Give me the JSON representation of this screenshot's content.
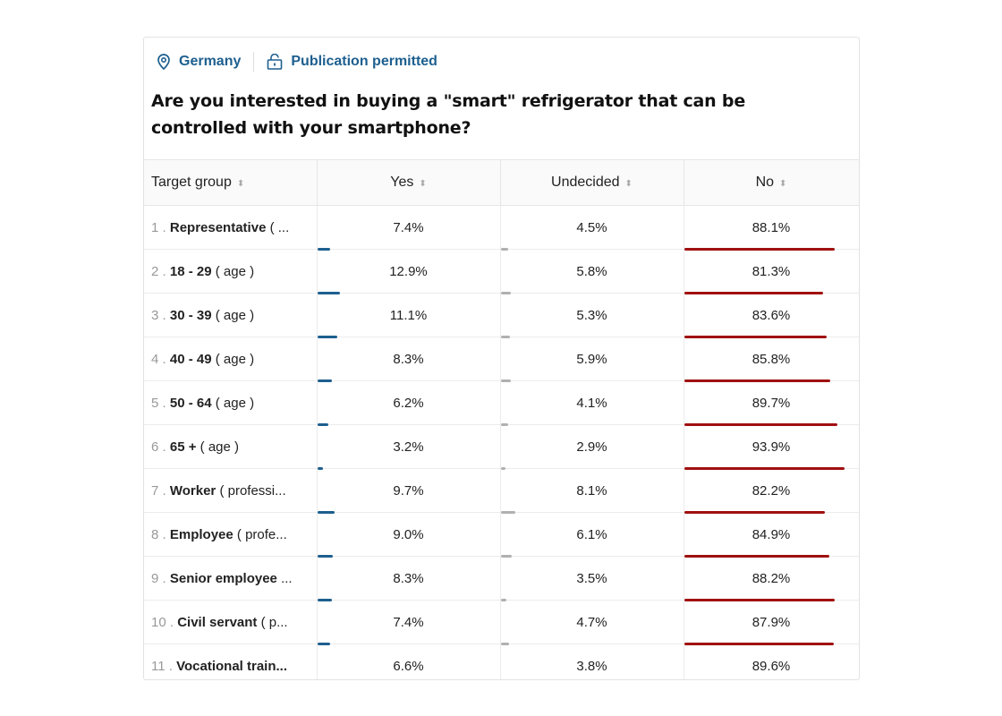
{
  "header": {
    "country": "Germany",
    "publication": "Publication permitted",
    "question": "Are you interested in buying a \"smart\" refrigerator that can be controlled with your smartphone?"
  },
  "columns": [
    "Target group",
    "Yes",
    "Undecided",
    "No"
  ],
  "colors": {
    "yes": "#1d5f8f",
    "undecided": "#b0b0b0",
    "no": "#a01010",
    "link": "#1d5f8f"
  },
  "rows": [
    {
      "num": "1",
      "name": "Representative",
      "suffix": " ( ...",
      "yes": "7.4%",
      "undecided": "4.5%",
      "no": "88.1%"
    },
    {
      "num": "2",
      "name": "18 - 29",
      "suffix": " ( age )",
      "yes": "12.9%",
      "undecided": "5.8%",
      "no": "81.3%"
    },
    {
      "num": "3",
      "name": "30 - 39",
      "suffix": " ( age )",
      "yes": "11.1%",
      "undecided": "5.3%",
      "no": "83.6%"
    },
    {
      "num": "4",
      "name": "40 - 49",
      "suffix": " ( age )",
      "yes": "8.3%",
      "undecided": "5.9%",
      "no": "85.8%"
    },
    {
      "num": "5",
      "name": "50 - 64",
      "suffix": " ( age )",
      "yes": "6.2%",
      "undecided": "4.1%",
      "no": "89.7%"
    },
    {
      "num": "6",
      "name": "65 +",
      "suffix": " ( age )",
      "yes": "3.2%",
      "undecided": "2.9%",
      "no": "93.9%"
    },
    {
      "num": "7",
      "name": "Worker",
      "suffix": " ( professi...",
      "yes": "9.7%",
      "undecided": "8.1%",
      "no": "82.2%"
    },
    {
      "num": "8",
      "name": "Employee",
      "suffix": " ( profe...",
      "yes": "9.0%",
      "undecided": "6.1%",
      "no": "84.9%"
    },
    {
      "num": "9",
      "name": "Senior employee",
      "suffix": " ...",
      "yes": "8.3%",
      "undecided": "3.5%",
      "no": "88.2%"
    },
    {
      "num": "10",
      "name": "Civil servant",
      "suffix": " ( p...",
      "yes": "7.4%",
      "undecided": "4.7%",
      "no": "87.9%"
    },
    {
      "num": "11",
      "name": "Vocational train...",
      "suffix": "",
      "yes": "6.6%",
      "undecided": "3.8%",
      "no": "89.6%"
    }
  ]
}
